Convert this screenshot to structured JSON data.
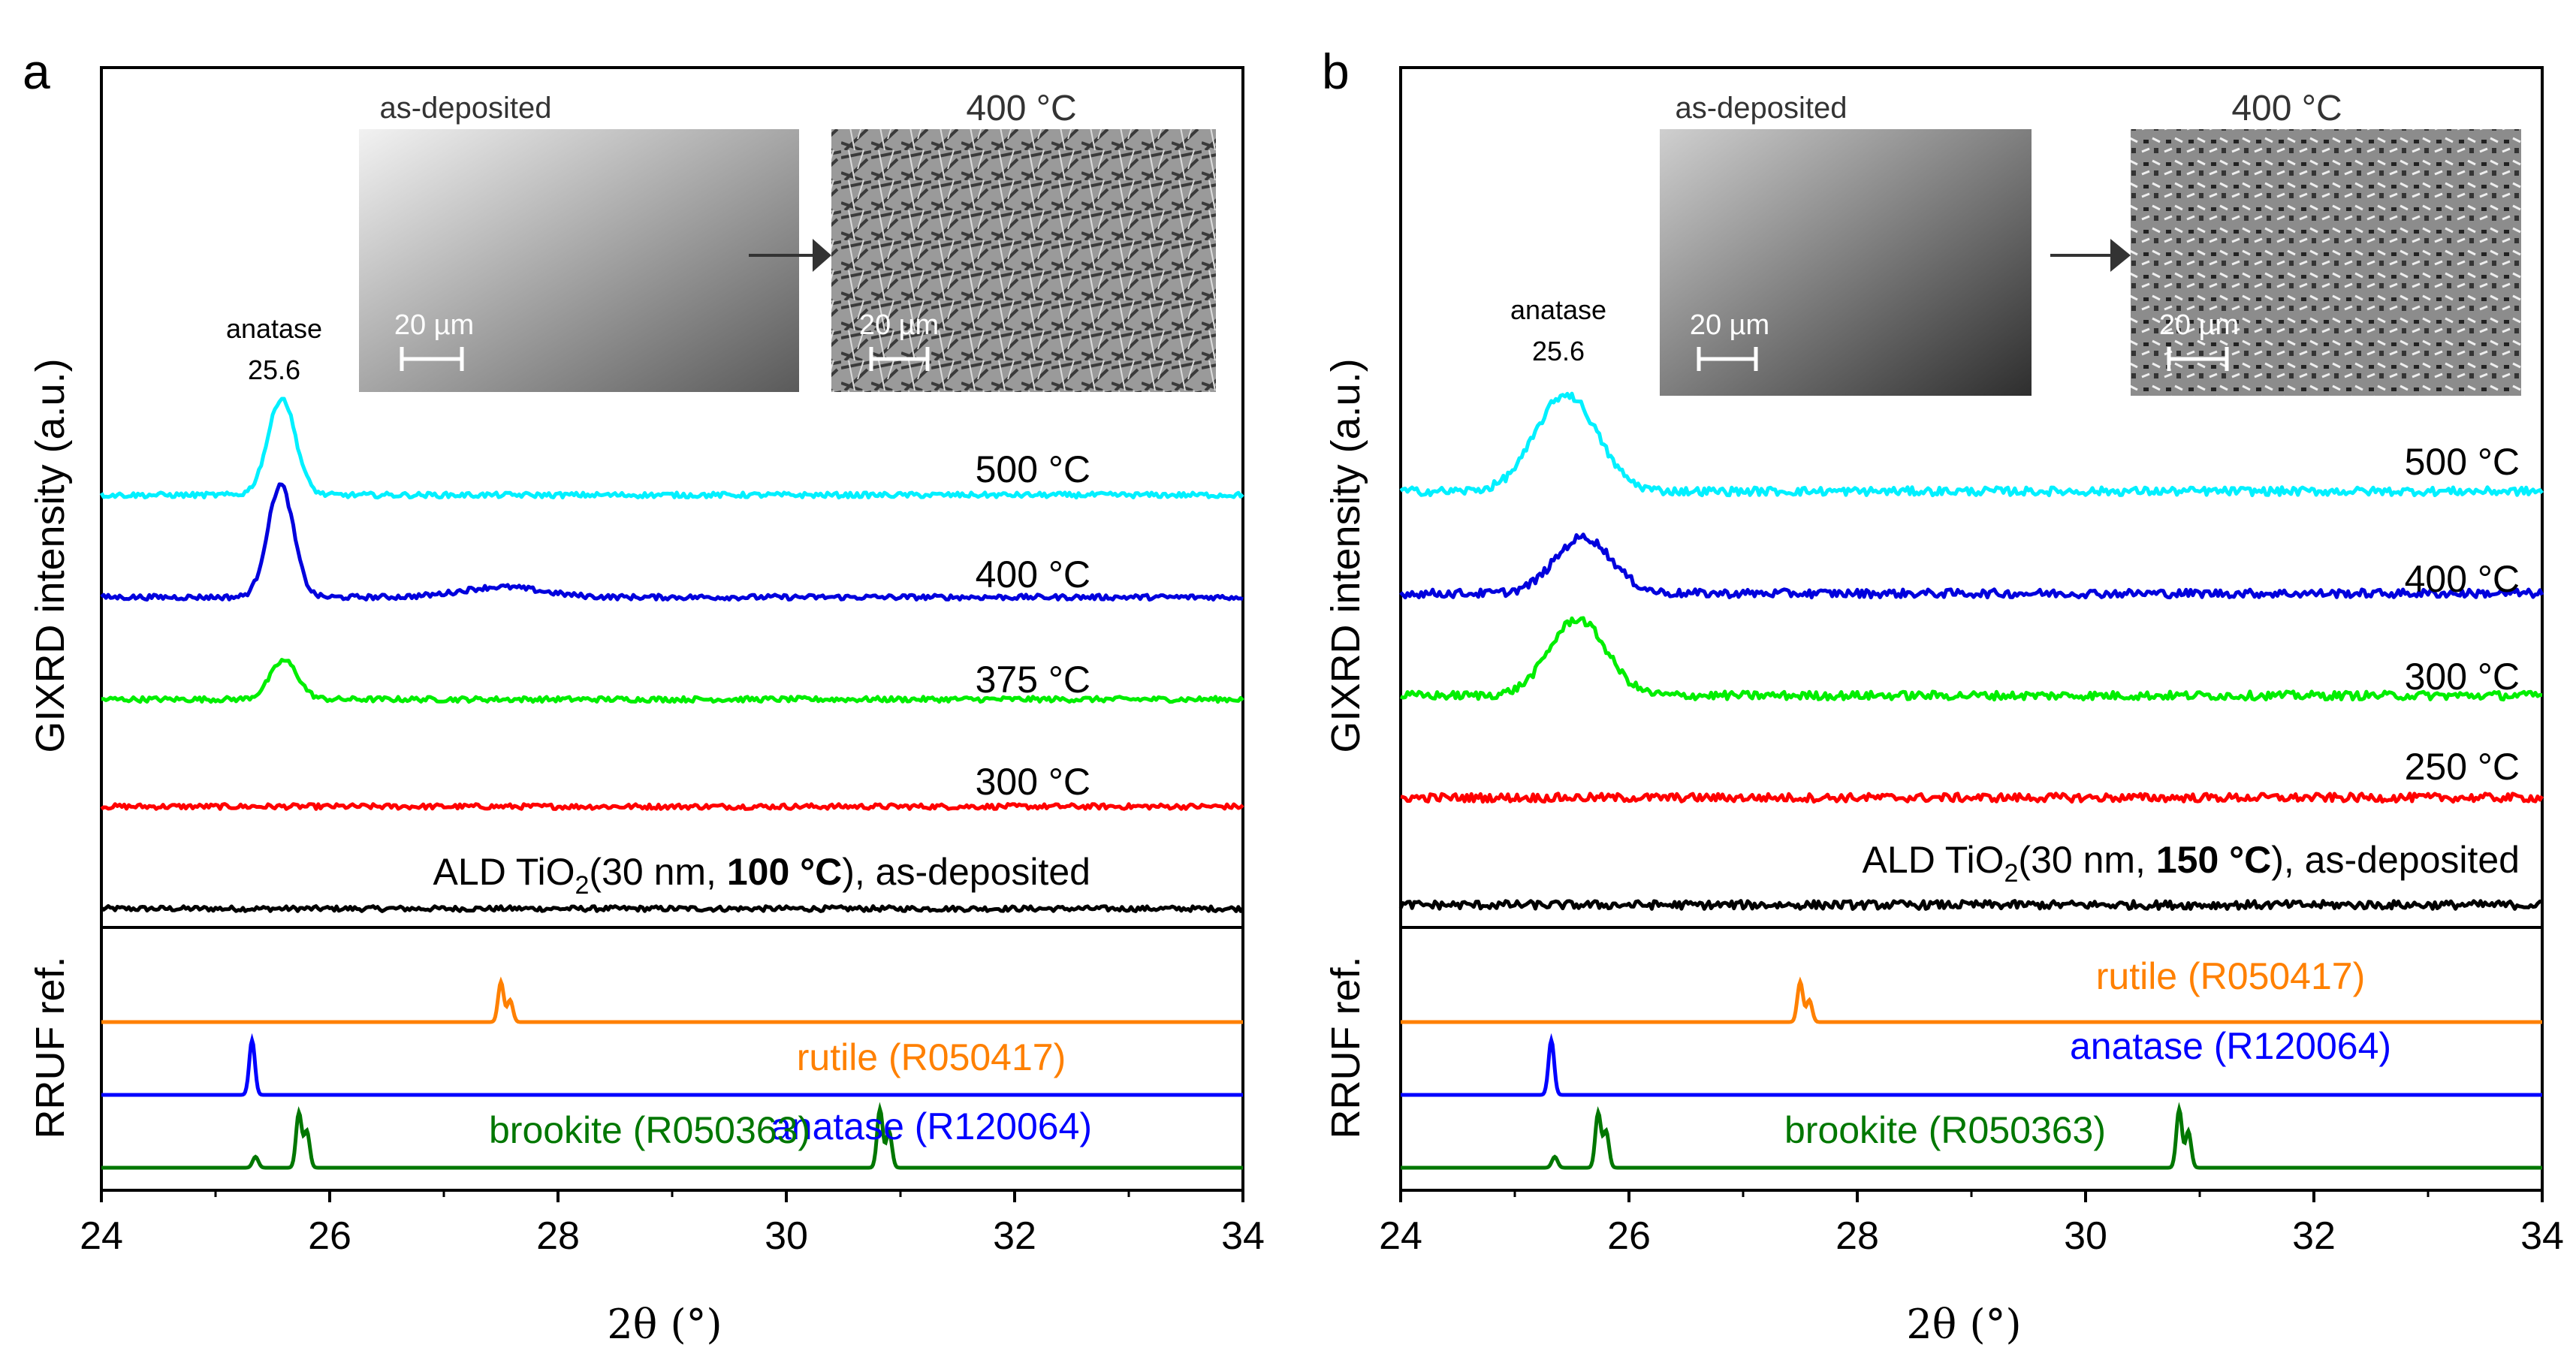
{
  "figure": {
    "x_tick_labels": [
      "24",
      "26",
      "28",
      "30",
      "32",
      "34"
    ],
    "x_axis_label": "2θ (°)",
    "y_axis_label_upper": "GIXRD intensity (a.u.)",
    "y_axis_label_lower": "RRUF ref."
  },
  "panels": [
    {
      "letter": "a",
      "sample_label_prefix": "ALD TiO",
      "sample_label_subscript": "2",
      "sample_label_mid": "(30 nm, ",
      "sample_label_bold": "100 °C",
      "sample_label_suffix": "), as-deposited",
      "peak_label_name": "anatase",
      "peak_label_value": "25.6",
      "inset_left_title": "as-deposited",
      "inset_right_title": "400 °C",
      "scale_bar_label": "20 µm",
      "inset_colors": {
        "left_light": "#f2f2f2",
        "left_dark": "#5a5a5a",
        "right_base": "#8a8a8a"
      }
    },
    {
      "letter": "b",
      "sample_label_prefix": "ALD TiO",
      "sample_label_subscript": "2",
      "sample_label_mid": "(30 nm, ",
      "sample_label_bold": "150 °C",
      "sample_label_suffix": "), as-deposited",
      "peak_label_name": "anatase",
      "peak_label_value": "25.6",
      "inset_left_title": "as-deposited",
      "inset_right_title": "400 °C",
      "scale_bar_label": "20 µm",
      "inset_colors": {
        "left_light": "#cfcfcf",
        "left_dark": "#2e2e2e",
        "right_base": "#6e6e6e"
      }
    }
  ],
  "chart_data": [
    {
      "type": "line",
      "panel": "a",
      "xlabel": "2θ (°)",
      "ylabel": "GIXRD intensity (a.u.)",
      "xlim": [
        24,
        34
      ],
      "ylim": [
        0,
        10
      ],
      "series": [
        {
          "name": "as-deposited",
          "label": "",
          "color": "#000000",
          "baseline": 0.0,
          "noise": 0.05,
          "peaks": []
        },
        {
          "name": "300 °C",
          "label": "300 °C",
          "color": "#ff0000",
          "baseline": 1.0,
          "noise": 0.05,
          "peaks": []
        },
        {
          "name": "375 °C",
          "label": "375 °C",
          "color": "#00ee00",
          "baseline": 2.05,
          "noise": 0.05,
          "peaks": [
            {
              "x": 25.6,
              "height": 0.38,
              "width": 0.17
            }
          ]
        },
        {
          "name": "400 °C",
          "label": "400 °C",
          "color": "#0000dd",
          "baseline": 3.05,
          "noise": 0.05,
          "peaks": [
            {
              "x": 25.57,
              "height": 1.1,
              "width": 0.16
            },
            {
              "x": 27.5,
              "height": 0.1,
              "width": 0.5
            }
          ]
        },
        {
          "name": "500 °C",
          "label": "500 °C",
          "color": "#00f0ff",
          "baseline": 4.05,
          "noise": 0.05,
          "peaks": [
            {
              "x": 25.58,
              "height": 0.95,
              "width": 0.17
            }
          ]
        }
      ],
      "reference": {
        "ylabel": "RRUF ref.",
        "series": [
          {
            "name": "rutile (R050417)",
            "color": "#ff8000",
            "baseline": 2.0,
            "peaks": [
              {
                "x": 27.5,
                "height": 0.55
              },
              {
                "x": 27.58,
                "height": 0.3
              }
            ]
          },
          {
            "name": "anatase (R120064)",
            "color": "#0000ff",
            "baseline": 1.0,
            "peaks": [
              {
                "x": 25.32,
                "height": 0.75
              }
            ]
          },
          {
            "name": "brookite (R050363)",
            "color": "#007700",
            "baseline": 0.0,
            "peaks": [
              {
                "x": 25.35,
                "height": 0.15
              },
              {
                "x": 25.73,
                "height": 0.75
              },
              {
                "x": 25.8,
                "height": 0.5
              },
              {
                "x": 30.82,
                "height": 0.8
              },
              {
                "x": 30.9,
                "height": 0.5
              }
            ]
          }
        ]
      }
    },
    {
      "type": "line",
      "panel": "b",
      "xlabel": "2θ (°)",
      "ylabel": "GIXRD intensity (a.u.)",
      "xlim": [
        24,
        34
      ],
      "ylim": [
        0,
        10
      ],
      "series": [
        {
          "name": "as-deposited",
          "label": "",
          "color": "#000000",
          "baseline": 0.0,
          "noise": 0.08,
          "peaks": []
        },
        {
          "name": "250 °C",
          "label": "250 °C",
          "color": "#ff0000",
          "baseline": 1.05,
          "noise": 0.08,
          "peaks": []
        },
        {
          "name": "300 °C",
          "label": "300 °C",
          "color": "#00ee00",
          "baseline": 2.05,
          "noise": 0.08,
          "peaks": [
            {
              "x": 25.55,
              "height": 0.75,
              "width": 0.35
            }
          ]
        },
        {
          "name": "400 °C",
          "label": "400 °C",
          "color": "#0000dd",
          "baseline": 3.05,
          "noise": 0.08,
          "peaks": [
            {
              "x": 25.6,
              "height": 0.55,
              "width": 0.35
            }
          ]
        },
        {
          "name": "500 °C",
          "label": "500 °C",
          "color": "#00f0ff",
          "baseline": 4.05,
          "noise": 0.08,
          "peaks": [
            {
              "x": 25.45,
              "height": 0.95,
              "width": 0.38
            }
          ]
        }
      ],
      "reference": {
        "ylabel": "RRUF ref.",
        "series": [
          {
            "name": "rutile (R050417)",
            "color": "#ff8000",
            "baseline": 2.0,
            "peaks": [
              {
                "x": 27.5,
                "height": 0.55
              },
              {
                "x": 27.58,
                "height": 0.3
              }
            ]
          },
          {
            "name": "anatase (R120064)",
            "color": "#0000ff",
            "baseline": 1.0,
            "peaks": [
              {
                "x": 25.32,
                "height": 0.75
              }
            ]
          },
          {
            "name": "brookite (R050363)",
            "color": "#007700",
            "baseline": 0.0,
            "peaks": [
              {
                "x": 25.35,
                "height": 0.15
              },
              {
                "x": 25.73,
                "height": 0.75
              },
              {
                "x": 25.8,
                "height": 0.5
              },
              {
                "x": 30.82,
                "height": 0.8
              },
              {
                "x": 30.9,
                "height": 0.5
              }
            ]
          }
        ]
      }
    }
  ]
}
